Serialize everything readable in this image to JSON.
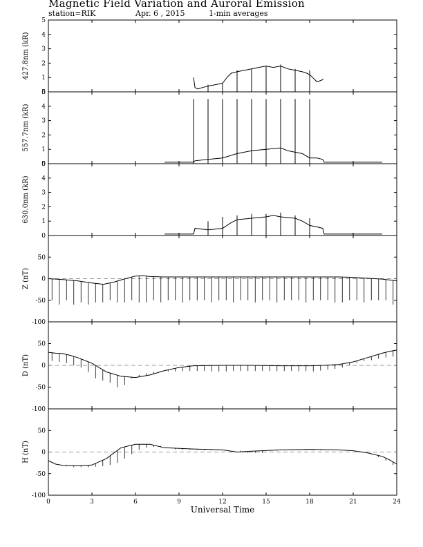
{
  "header": {
    "title": "Magnetic Field Variation and Auroral Emission",
    "station": "station=RIK",
    "date": "Apr. 6 , 2015",
    "averaging": "1-min averages"
  },
  "chart_data": {
    "type": "line",
    "xlabel": "Universal Time",
    "xlim": [
      0,
      24
    ],
    "xticks": [
      0,
      3,
      6,
      9,
      12,
      15,
      18,
      21,
      24
    ],
    "panels": [
      {
        "id": "p4278",
        "ylabel": "427.8nm (kR)",
        "ylim": [
          0,
          5
        ],
        "yticks": [
          0,
          1,
          2,
          3,
          4,
          5
        ],
        "baseline": 0,
        "series": {
          "x": [
            10.0,
            10.1,
            10.3,
            10.6,
            11.0,
            11.5,
            12.0,
            12.3,
            12.6,
            13.0,
            13.5,
            14.0,
            14.5,
            15.0,
            15.5,
            16.0,
            16.5,
            17.0,
            17.5,
            17.8,
            18.0,
            18.2,
            18.5,
            18.8,
            18.95
          ],
          "y": [
            1.0,
            0.3,
            0.2,
            0.3,
            0.4,
            0.5,
            0.6,
            1.0,
            1.3,
            1.4,
            1.5,
            1.6,
            1.7,
            1.8,
            1.7,
            1.8,
            1.6,
            1.5,
            1.4,
            1.3,
            1.2,
            1.0,
            0.7,
            0.8,
            0.9
          ]
        },
        "spikes": [
          {
            "x": 11.0,
            "y": 0.5
          },
          {
            "x": 12.0,
            "y": 0.6
          },
          {
            "x": 13.0,
            "y": 1.5
          },
          {
            "x": 14.0,
            "y": 1.6
          },
          {
            "x": 15.0,
            "y": 1.8
          },
          {
            "x": 16.0,
            "y": 1.9
          },
          {
            "x": 17.0,
            "y": 1.6
          },
          {
            "x": 18.0,
            "y": 1.5
          }
        ]
      },
      {
        "id": "p5577",
        "ylabel": "557.7nm (kR)",
        "ylim": [
          0,
          5
        ],
        "yticks": [
          0,
          1,
          2,
          3,
          4,
          5
        ],
        "baseline": 0,
        "series": {
          "x": [
            8.0,
            10.0,
            10.1,
            11.0,
            12.0,
            13.0,
            14.0,
            15.0,
            16.0,
            16.5,
            17.0,
            17.5,
            18.0,
            18.5,
            18.9,
            19.0,
            23.0
          ],
          "y": [
            0.1,
            0.1,
            0.2,
            0.3,
            0.4,
            0.7,
            0.9,
            1.0,
            1.1,
            0.9,
            0.8,
            0.7,
            0.4,
            0.4,
            0.3,
            0.1,
            0.1
          ]
        },
        "spikes": [
          {
            "x": 10.0,
            "y": 4.5
          },
          {
            "x": 11.0,
            "y": 4.5
          },
          {
            "x": 12.0,
            "y": 4.5
          },
          {
            "x": 13.0,
            "y": 4.5
          },
          {
            "x": 14.0,
            "y": 4.5
          },
          {
            "x": 15.0,
            "y": 4.5
          },
          {
            "x": 16.0,
            "y": 4.5
          },
          {
            "x": 17.0,
            "y": 4.5
          },
          {
            "x": 18.0,
            "y": 4.5
          }
        ]
      },
      {
        "id": "p6300",
        "ylabel": "630.0nm (kR)",
        "ylim": [
          0,
          5
        ],
        "yticks": [
          0,
          1,
          2,
          3,
          4,
          5
        ],
        "baseline": 0,
        "series": {
          "x": [
            8.0,
            10.0,
            10.1,
            11.0,
            12.0,
            12.6,
            13.0,
            14.0,
            15.0,
            15.5,
            16.0,
            17.0,
            17.5,
            18.0,
            18.5,
            18.9,
            19.0,
            23.0
          ],
          "y": [
            0.1,
            0.1,
            0.5,
            0.4,
            0.5,
            0.9,
            1.1,
            1.2,
            1.3,
            1.4,
            1.3,
            1.2,
            1.0,
            0.7,
            0.6,
            0.5,
            0.1,
            0.1
          ]
        },
        "spikes": [
          {
            "x": 11.0,
            "y": 1.0
          },
          {
            "x": 12.0,
            "y": 1.3
          },
          {
            "x": 13.0,
            "y": 1.4
          },
          {
            "x": 14.0,
            "y": 1.5
          },
          {
            "x": 15.0,
            "y": 1.5
          },
          {
            "x": 16.0,
            "y": 1.6
          },
          {
            "x": 17.0,
            "y": 1.4
          },
          {
            "x": 18.0,
            "y": 1.2
          }
        ]
      },
      {
        "id": "pZ",
        "ylabel": "Z (nT)",
        "ylim": [
          -100,
          100
        ],
        "yticks": [
          -100,
          -50,
          0,
          50
        ],
        "baseline": 0,
        "series": {
          "x": [
            0.0,
            1.0,
            2.0,
            3.0,
            3.8,
            4.5,
            5.0,
            5.5,
            6.0,
            6.5,
            7.0,
            8.0,
            10.0,
            12.0,
            14.0,
            16.0,
            18.0,
            20.0,
            21.0,
            22.0,
            23.0,
            23.5,
            24.0
          ],
          "y": [
            0.0,
            -2.0,
            -5.0,
            -10.0,
            -13.0,
            -8.0,
            -3.0,
            2.0,
            6.0,
            7.0,
            5.0,
            4.0,
            4.0,
            4.0,
            4.0,
            4.0,
            4.0,
            4.0,
            3.0,
            1.0,
            -1.0,
            -3.0,
            -5.0
          ]
        },
        "spike_min": [
          -50,
          -60,
          -50,
          -60,
          -55,
          -60,
          -55,
          -55,
          -50,
          -55,
          -55,
          -50,
          -55,
          -55,
          -50,
          -55,
          -50,
          -50,
          -55,
          -50,
          -50,
          -50,
          -55,
          -50,
          -50,
          -55,
          -50,
          -50,
          -55,
          -50,
          -50,
          -55,
          -50,
          -50,
          -50,
          -55,
          -50,
          -50,
          -50,
          -55,
          -55,
          -50,
          -50,
          -55,
          -50,
          -50,
          -50,
          -60
        ]
      },
      {
        "id": "pD",
        "ylabel": "D (nT)",
        "ylim": [
          -100,
          100
        ],
        "yticks": [
          -100,
          -50,
          0,
          50
        ],
        "baseline": 0,
        "series": {
          "x": [
            0.0,
            0.5,
            1.0,
            1.5,
            2.0,
            3.0,
            4.0,
            5.0,
            6.0,
            7.0,
            8.0,
            9.0,
            10.0,
            12.0,
            14.0,
            16.0,
            18.0,
            19.0,
            20.0,
            21.0,
            22.0,
            23.0,
            23.5,
            24.0
          ],
          "y": [
            30.0,
            28.0,
            27.0,
            23.0,
            18.0,
            5.0,
            -15.0,
            -25.0,
            -28.0,
            -22.0,
            -12.0,
            -5.0,
            -1.0,
            0.0,
            0.0,
            -1.0,
            -1.0,
            0.0,
            2.0,
            8.0,
            18.0,
            28.0,
            32.0,
            35.0
          ]
        },
        "spike_min": [
          10,
          8,
          5,
          0,
          -5,
          -15,
          -30,
          -35,
          -40,
          -50,
          -45,
          -30,
          -22,
          -18,
          -15,
          -15,
          -14,
          -14,
          -13,
          -13,
          -13,
          -13,
          -14,
          -14,
          -14,
          -13,
          -13,
          -13,
          -13,
          -13,
          -13,
          -13,
          -13,
          -13,
          -13,
          -13,
          -14,
          -12,
          -10,
          -8,
          -5,
          0,
          5,
          10,
          12,
          15,
          18,
          20
        ]
      },
      {
        "id": "pH",
        "ylabel": "H (nT)",
        "ylim": [
          -100,
          100
        ],
        "yticks": [
          -100,
          -50,
          0,
          50
        ],
        "baseline": 0,
        "series": {
          "x": [
            0.0,
            0.5,
            1.0,
            2.0,
            3.0,
            4.0,
            5.0,
            6.0,
            7.0,
            8.0,
            10.0,
            12.0,
            13.0,
            14.0,
            16.0,
            18.0,
            20.0,
            21.0,
            22.0,
            23.0,
            23.5,
            24.0
          ],
          "y": [
            -20.0,
            -28.0,
            -31.0,
            -32.0,
            -30.0,
            -15.0,
            10.0,
            18.0,
            18.0,
            10.0,
            7.0,
            5.0,
            0.0,
            2.0,
            5.0,
            6.0,
            5.0,
            3.0,
            -2.0,
            -10.0,
            -18.0,
            -28.0
          ]
        },
        "spike_min": [
          -25,
          -30,
          -33,
          -35,
          -35,
          -35,
          -34,
          -33,
          -30,
          -25,
          -15,
          -5,
          5,
          10,
          12,
          14,
          10,
          6,
          5,
          5,
          5,
          4,
          4,
          4,
          3,
          3,
          3,
          -2,
          -2,
          -2,
          3,
          3,
          4,
          4,
          4,
          4,
          4,
          4,
          5,
          5,
          4,
          3,
          2,
          0,
          -5,
          -12,
          -20,
          -30
        ]
      }
    ]
  }
}
